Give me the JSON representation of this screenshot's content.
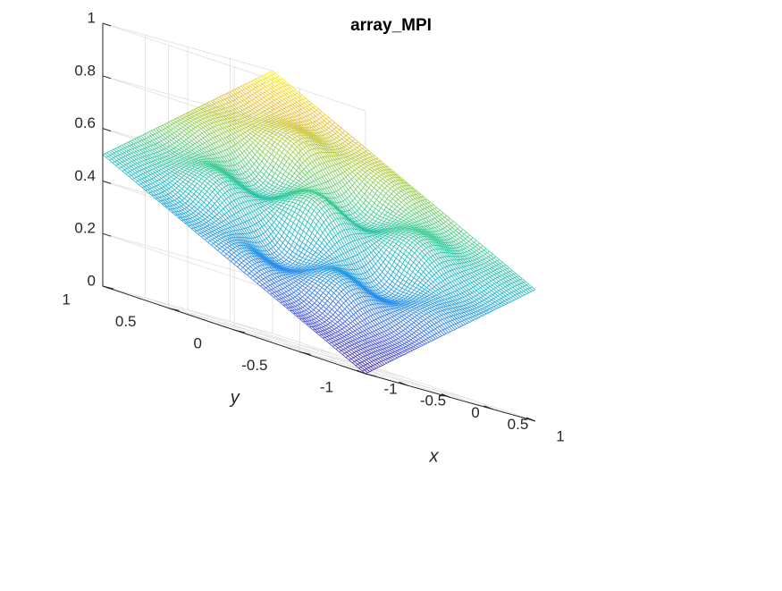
{
  "chart_data": {
    "type": "surface-mesh",
    "title": "array_MPI",
    "xlabel": "x",
    "ylabel": "y",
    "zlabel": "",
    "xlim": [
      -1,
      1
    ],
    "ylim": [
      -1,
      1
    ],
    "zlim": [
      0,
      1
    ],
    "x_ticks": [
      "-1",
      "-0.5",
      "0",
      "0.5",
      "1"
    ],
    "y_ticks": [
      "-1",
      "-0.5",
      "0",
      "0.5",
      "1"
    ],
    "z_ticks": [
      "0",
      "0.2",
      "0.4",
      "0.6",
      "0.8",
      "1"
    ],
    "grid": true,
    "colormap": "parula",
    "mesh_resolution": 81,
    "surface_corner_values": [
      {
        "x": -1,
        "y": -1,
        "z": 0
      },
      {
        "x": 1,
        "y": -1,
        "z": 0.5
      },
      {
        "x": -1,
        "y": 1,
        "z": 0.5
      },
      {
        "x": 1,
        "y": 1,
        "z": 1
      }
    ]
  }
}
